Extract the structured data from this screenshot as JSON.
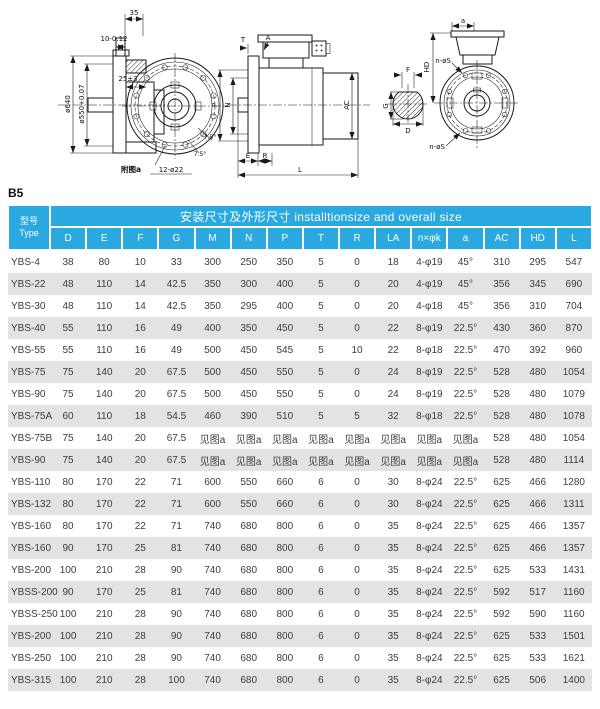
{
  "section_label": "B5",
  "diagram": {
    "left_view": {
      "dim_width_top": "35",
      "dim_tolerance": "10-0.12",
      "dim_gasket": "25±3",
      "dia_outer": "ø640",
      "dia_spigot": "ø550+0.07"
    },
    "front_view": {
      "holes": "12-ø22",
      "angle1": "7.5°",
      "angle2": "7.5°",
      "caption": "附图a"
    },
    "side_view": {
      "t": "T",
      "a": "A",
      "n": "N",
      "p": "P",
      "ac": "AC",
      "e": "E",
      "r": "R",
      "l": "L"
    },
    "shaft_view": {
      "f": "F",
      "d": "D",
      "g": "G"
    },
    "right_view": {
      "a": "a",
      "hd": "HD",
      "ns_top": "n-øS",
      "ns_bottom": "n-øS"
    }
  },
  "table": {
    "title": "安装尺寸及外形尺寸 installtionsize and overall size",
    "model_header_cn": "型号",
    "model_header_en": "Type",
    "columns": [
      "D",
      "E",
      "F",
      "G",
      "M",
      "N",
      "P",
      "T",
      "R",
      "LA",
      "n×φk",
      "a",
      "AC",
      "HD",
      "L"
    ],
    "rows": [
      {
        "type": "YBS-4",
        "values": [
          "38",
          "80",
          "10",
          "33",
          "300",
          "250",
          "350",
          "5",
          "0",
          "18",
          "4-φ19",
          "45°",
          "310",
          "295",
          "547"
        ]
      },
      {
        "type": "YBS-22",
        "values": [
          "48",
          "110",
          "14",
          "42.5",
          "350",
          "300",
          "400",
          "5",
          "0",
          "20",
          "4-φ19",
          "45°",
          "356",
          "345",
          "690"
        ]
      },
      {
        "type": "YBS-30",
        "values": [
          "48",
          "110",
          "14",
          "42.5",
          "350",
          "295",
          "400",
          "5",
          "0",
          "20",
          "4-φ18",
          "45°",
          "356",
          "310",
          "704"
        ]
      },
      {
        "type": "YBS-40",
        "values": [
          "55",
          "110",
          "16",
          "49",
          "400",
          "350",
          "450",
          "5",
          "0",
          "22",
          "8-φ19",
          "22.5°",
          "430",
          "360",
          "870"
        ]
      },
      {
        "type": "YBS-55",
        "values": [
          "55",
          "110",
          "16",
          "49",
          "500",
          "450",
          "545",
          "5",
          "10",
          "22",
          "8-φ18",
          "22.5°",
          "470",
          "392",
          "960"
        ]
      },
      {
        "type": "YBS-75",
        "values": [
          "75",
          "140",
          "20",
          "67.5",
          "500",
          "450",
          "550",
          "5",
          "0",
          "24",
          "8-φ19",
          "22.5°",
          "528",
          "480",
          "1054"
        ]
      },
      {
        "type": "YBS-90",
        "values": [
          "75",
          "140",
          "20",
          "67.5",
          "500",
          "450",
          "550",
          "5",
          "0",
          "24",
          "8-φ19",
          "22.5°",
          "528",
          "480",
          "1079"
        ]
      },
      {
        "type": "YBS-75A",
        "values": [
          "60",
          "110",
          "18",
          "54.5",
          "460",
          "390",
          "510",
          "5",
          "5",
          "32",
          "8-φ18",
          "22.5°",
          "528",
          "480",
          "1078"
        ]
      },
      {
        "type": "YBS-75B",
        "values": [
          "75",
          "140",
          "20",
          "67.5",
          "见图a",
          "见图a",
          "见图a",
          "见图a",
          "见图a",
          "见图a",
          "见图a",
          "见图a",
          "528",
          "480",
          "1054"
        ]
      },
      {
        "type": "YBS-90",
        "values": [
          "75",
          "140",
          "20",
          "67.5",
          "见图a",
          "见图a",
          "见图a",
          "见图a",
          "见图a",
          "见图a",
          "见图a",
          "见图a",
          "528",
          "480",
          "1114"
        ]
      },
      {
        "type": "YBS-110",
        "values": [
          "80",
          "170",
          "22",
          "71",
          "600",
          "550",
          "660",
          "6",
          "0",
          "30",
          "8-φ24",
          "22.5°",
          "625",
          "466",
          "1280"
        ]
      },
      {
        "type": "YBS-132",
        "values": [
          "80",
          "170",
          "22",
          "71",
          "600",
          "550",
          "660",
          "6",
          "0",
          "30",
          "8-φ24",
          "22.5°",
          "625",
          "466",
          "1311"
        ]
      },
      {
        "type": "YBS-160",
        "values": [
          "80",
          "170",
          "22",
          "71",
          "740",
          "680",
          "800",
          "6",
          "0",
          "35",
          "8-φ24",
          "22.5°",
          "625",
          "466",
          "1357"
        ]
      },
      {
        "type": "YBS-160",
        "values": [
          "90",
          "170",
          "25",
          "81",
          "740",
          "680",
          "800",
          "6",
          "0",
          "35",
          "8-φ24",
          "22.5°",
          "625",
          "466",
          "1357"
        ]
      },
      {
        "type": "YBS-200",
        "values": [
          "100",
          "210",
          "28",
          "90",
          "740",
          "680",
          "800",
          "6",
          "0",
          "35",
          "8-φ24",
          "22.5°",
          "625",
          "533",
          "1431"
        ]
      },
      {
        "type": "YBSS-200",
        "values": [
          "90",
          "170",
          "25",
          "81",
          "740",
          "680",
          "800",
          "6",
          "0",
          "35",
          "8-φ24",
          "22.5°",
          "592",
          "517",
          "1160"
        ]
      },
      {
        "type": "YBSS-250",
        "values": [
          "100",
          "210",
          "28",
          "90",
          "740",
          "680",
          "800",
          "6",
          "0",
          "35",
          "8-φ24",
          "22.5°",
          "592",
          "590",
          "1160"
        ]
      },
      {
        "type": "YBS-200",
        "values": [
          "100",
          "210",
          "28",
          "90",
          "740",
          "680",
          "800",
          "6",
          "0",
          "35",
          "8-φ24",
          "22.5°",
          "625",
          "533",
          "1501"
        ]
      },
      {
        "type": "YBS-250",
        "values": [
          "100",
          "210",
          "28",
          "90",
          "740",
          "680",
          "800",
          "6",
          "0",
          "35",
          "8-φ24",
          "22.5°",
          "625",
          "533",
          "1621"
        ]
      },
      {
        "type": "YBS-315",
        "values": [
          "100",
          "210",
          "28",
          "100",
          "740",
          "680",
          "800",
          "6",
          "0",
          "35",
          "8-φ24",
          "22.5°",
          "625",
          "506",
          "1400"
        ]
      }
    ]
  },
  "colors": {
    "header_bg": "#29a9e0",
    "row_alt_bg": "#e3e3e3",
    "text": "#3c3c3c"
  }
}
